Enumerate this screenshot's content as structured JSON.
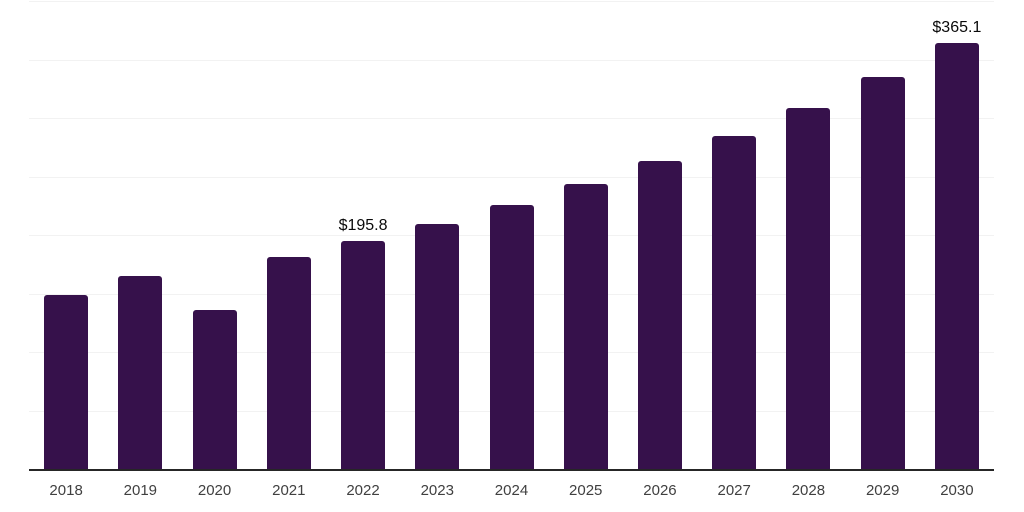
{
  "chart_data": {
    "type": "bar",
    "title": "",
    "xlabel": "",
    "ylabel": "",
    "categories": [
      "2018",
      "2019",
      "2020",
      "2021",
      "2022",
      "2023",
      "2024",
      "2025",
      "2026",
      "2027",
      "2028",
      "2029",
      "2030"
    ],
    "values": [
      149.3,
      165.6,
      136.8,
      182.1,
      195.8,
      210.5,
      226.5,
      244.4,
      264.1,
      285.5,
      309.4,
      335.9,
      365.1
    ],
    "labeled_points": [
      {
        "category": "2022",
        "label": "$195.8"
      },
      {
        "category": "2030",
        "label": "$365.1"
      }
    ],
    "ylim": [
      0,
      400
    ],
    "gridline_step": 50,
    "grid": true,
    "legend": false,
    "y_axis_labels_shown": false
  },
  "colors": {
    "background": "#ffffff",
    "bar": "#36114B",
    "grid": "#f2f2f2",
    "axis": "#262626",
    "tick_label": "#404040",
    "data_label": "#0a0a0a"
  }
}
